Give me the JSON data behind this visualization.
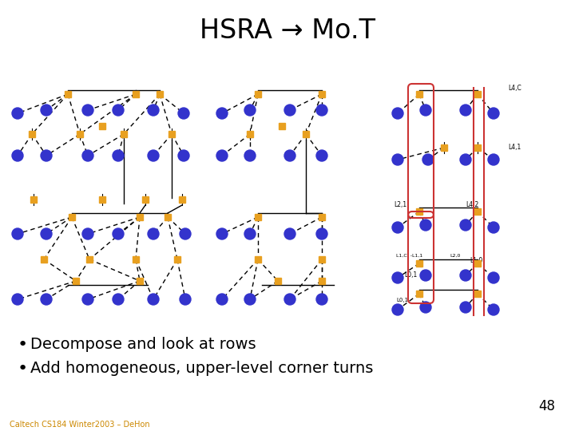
{
  "title": "HSRA → Mo.T",
  "bullet1": "Decompose and look at rows",
  "bullet2": "Add homogeneous, upper-level corner turns",
  "page_num": "48",
  "footer": "Caltech CS184 Winter2003 – DeHon",
  "bg_color": "#ffffff",
  "blue": "#3333cc",
  "orange": "#E8A020",
  "black": "#000000",
  "red": "#cc3333",
  "title_fs": 24,
  "bullet_fs": 14,
  "footer_fs": 7
}
